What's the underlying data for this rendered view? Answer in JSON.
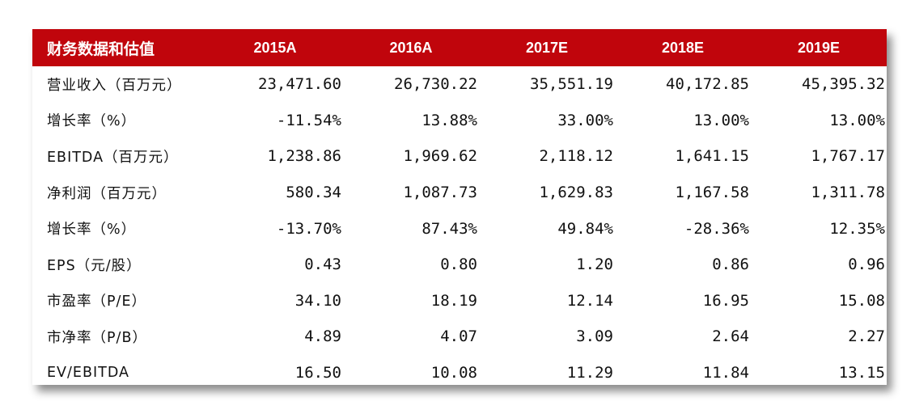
{
  "table": {
    "header": {
      "label": "财务数据和估值",
      "columns": [
        "2015A",
        "2016A",
        "2017E",
        "2018E",
        "2019E"
      ]
    },
    "rows": [
      {
        "label": "营业收入（百万元）",
        "values": [
          "23,471.60",
          "26,730.22",
          "35,551.19",
          "40,172.85",
          "45,395.32"
        ]
      },
      {
        "label": "增长率（%）",
        "values": [
          "-11.54%",
          "13.88%",
          "33.00%",
          "13.00%",
          "13.00%"
        ]
      },
      {
        "label": "EBITDA（百万元）",
        "values": [
          "1,238.86",
          "1,969.62",
          "2,118.12",
          "1,641.15",
          "1,767.17"
        ]
      },
      {
        "label": "净利润（百万元）",
        "values": [
          "580.34",
          "1,087.73",
          "1,629.83",
          "1,167.58",
          "1,311.78"
        ]
      },
      {
        "label": "增长率（%）",
        "values": [
          "-13.70%",
          "87.43%",
          "49.84%",
          "-28.36%",
          "12.35%"
        ]
      },
      {
        "label": "EPS（元/股）",
        "values": [
          "0.43",
          "0.80",
          "1.20",
          "0.86",
          "0.96"
        ]
      },
      {
        "label": "市盈率（P/E）",
        "values": [
          "34.10",
          "18.19",
          "12.14",
          "16.95",
          "15.08"
        ]
      },
      {
        "label": "市净率（P/B）",
        "values": [
          "4.89",
          "4.07",
          "3.09",
          "2.64",
          "2.27"
        ]
      },
      {
        "label": "EV/EBITDA",
        "values": [
          "16.50",
          "10.08",
          "11.29",
          "11.84",
          "13.15"
        ]
      }
    ]
  },
  "colors": {
    "header_background": "#c0050c",
    "header_text": "#ffffff",
    "body_text": "#111111"
  }
}
